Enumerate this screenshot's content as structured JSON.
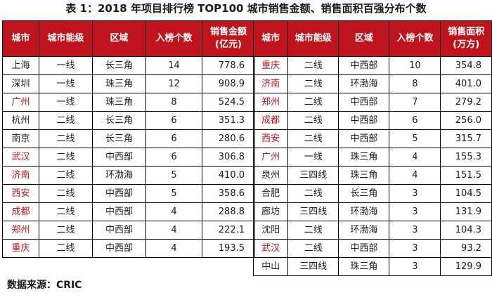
{
  "title": "表 1：2018 年项目排行榜 TOP100 城市销售金额、销售面积百强分布个数",
  "source": "数据来源：CRIC",
  "left_table": {
    "headers": [
      "城市",
      "城市能级",
      "区域",
      "入榜个数",
      "销售金额\n(亿元)"
    ],
    "rows": [
      {
        "city": "上海",
        "tier": "一线",
        "region": "长三角",
        "count": "14",
        "value": "778.6",
        "highlight": false
      },
      {
        "city": "深圳",
        "tier": "一线",
        "region": "珠三角",
        "count": "12",
        "value": "908.9",
        "highlight": false
      },
      {
        "city": "广州",
        "tier": "一线",
        "region": "珠三角",
        "count": "8",
        "value": "524.5",
        "highlight": true
      },
      {
        "city": "杭州",
        "tier": "二线",
        "region": "长三角",
        "count": "6",
        "value": "351.3",
        "highlight": false
      },
      {
        "city": "南京",
        "tier": "二线",
        "region": "长三角",
        "count": "6",
        "value": "280.6",
        "highlight": false
      },
      {
        "city": "武汉",
        "tier": "二线",
        "region": "中西部",
        "count": "6",
        "value": "306.8",
        "highlight": true
      },
      {
        "city": "济南",
        "tier": "二线",
        "region": "环渤海",
        "count": "5",
        "value": "410.0",
        "highlight": true
      },
      {
        "city": "西安",
        "tier": "二线",
        "region": "中西部",
        "count": "5",
        "value": "358.6",
        "highlight": true
      },
      {
        "city": "成都",
        "tier": "二线",
        "region": "中西部",
        "count": "4",
        "value": "288.8",
        "highlight": true
      },
      {
        "city": "郑州",
        "tier": "二线",
        "region": "中西部",
        "count": "4",
        "value": "222.1",
        "highlight": true
      },
      {
        "city": "重庆",
        "tier": "二线",
        "region": "中西部",
        "count": "4",
        "value": "193.5",
        "highlight": true
      }
    ]
  },
  "right_table": {
    "headers": [
      "城市",
      "城市能级",
      "区域",
      "入榜个数",
      "销售面积\n(万方)"
    ],
    "rows": [
      {
        "city": "重庆",
        "tier": "二线",
        "region": "中西部",
        "count": "10",
        "value": "354.8",
        "highlight": true
      },
      {
        "city": "济南",
        "tier": "二线",
        "region": "环渤海",
        "count": "8",
        "value": "401.0",
        "highlight": true
      },
      {
        "city": "郑州",
        "tier": "二线",
        "region": "中西部",
        "count": "7",
        "value": "279.2",
        "highlight": true
      },
      {
        "city": "成都",
        "tier": "二线",
        "region": "中西部",
        "count": "6",
        "value": "256.0",
        "highlight": true
      },
      {
        "city": "西安",
        "tier": "二线",
        "region": "中西部",
        "count": "5",
        "value": "315.7",
        "highlight": true
      },
      {
        "city": "广州",
        "tier": "一线",
        "region": "珠三角",
        "count": "4",
        "value": "155.3",
        "highlight": true
      },
      {
        "city": "泉州",
        "tier": "三四线",
        "region": "珠三角",
        "count": "4",
        "value": "151.5",
        "highlight": false
      },
      {
        "city": "合肥",
        "tier": "二线",
        "region": "长三角",
        "count": "3",
        "value": "104.5",
        "highlight": false
      },
      {
        "city": "廊坊",
        "tier": "三四线",
        "region": "环渤海",
        "count": "3",
        "value": "131.9",
        "highlight": false
      },
      {
        "city": "沈阳",
        "tier": "二线",
        "region": "环渤海",
        "count": "3",
        "value": "104.3",
        "highlight": false
      },
      {
        "city": "武汉",
        "tier": "二线",
        "region": "中西部",
        "count": "3",
        "value": "93.2",
        "highlight": true
      },
      {
        "city": "中山",
        "tier": "三四线",
        "region": "珠三角",
        "count": "3",
        "value": "129.9",
        "highlight": false
      }
    ]
  },
  "colors": {
    "header_bg": "#c0141c",
    "highlight_text": "#c0141c"
  }
}
